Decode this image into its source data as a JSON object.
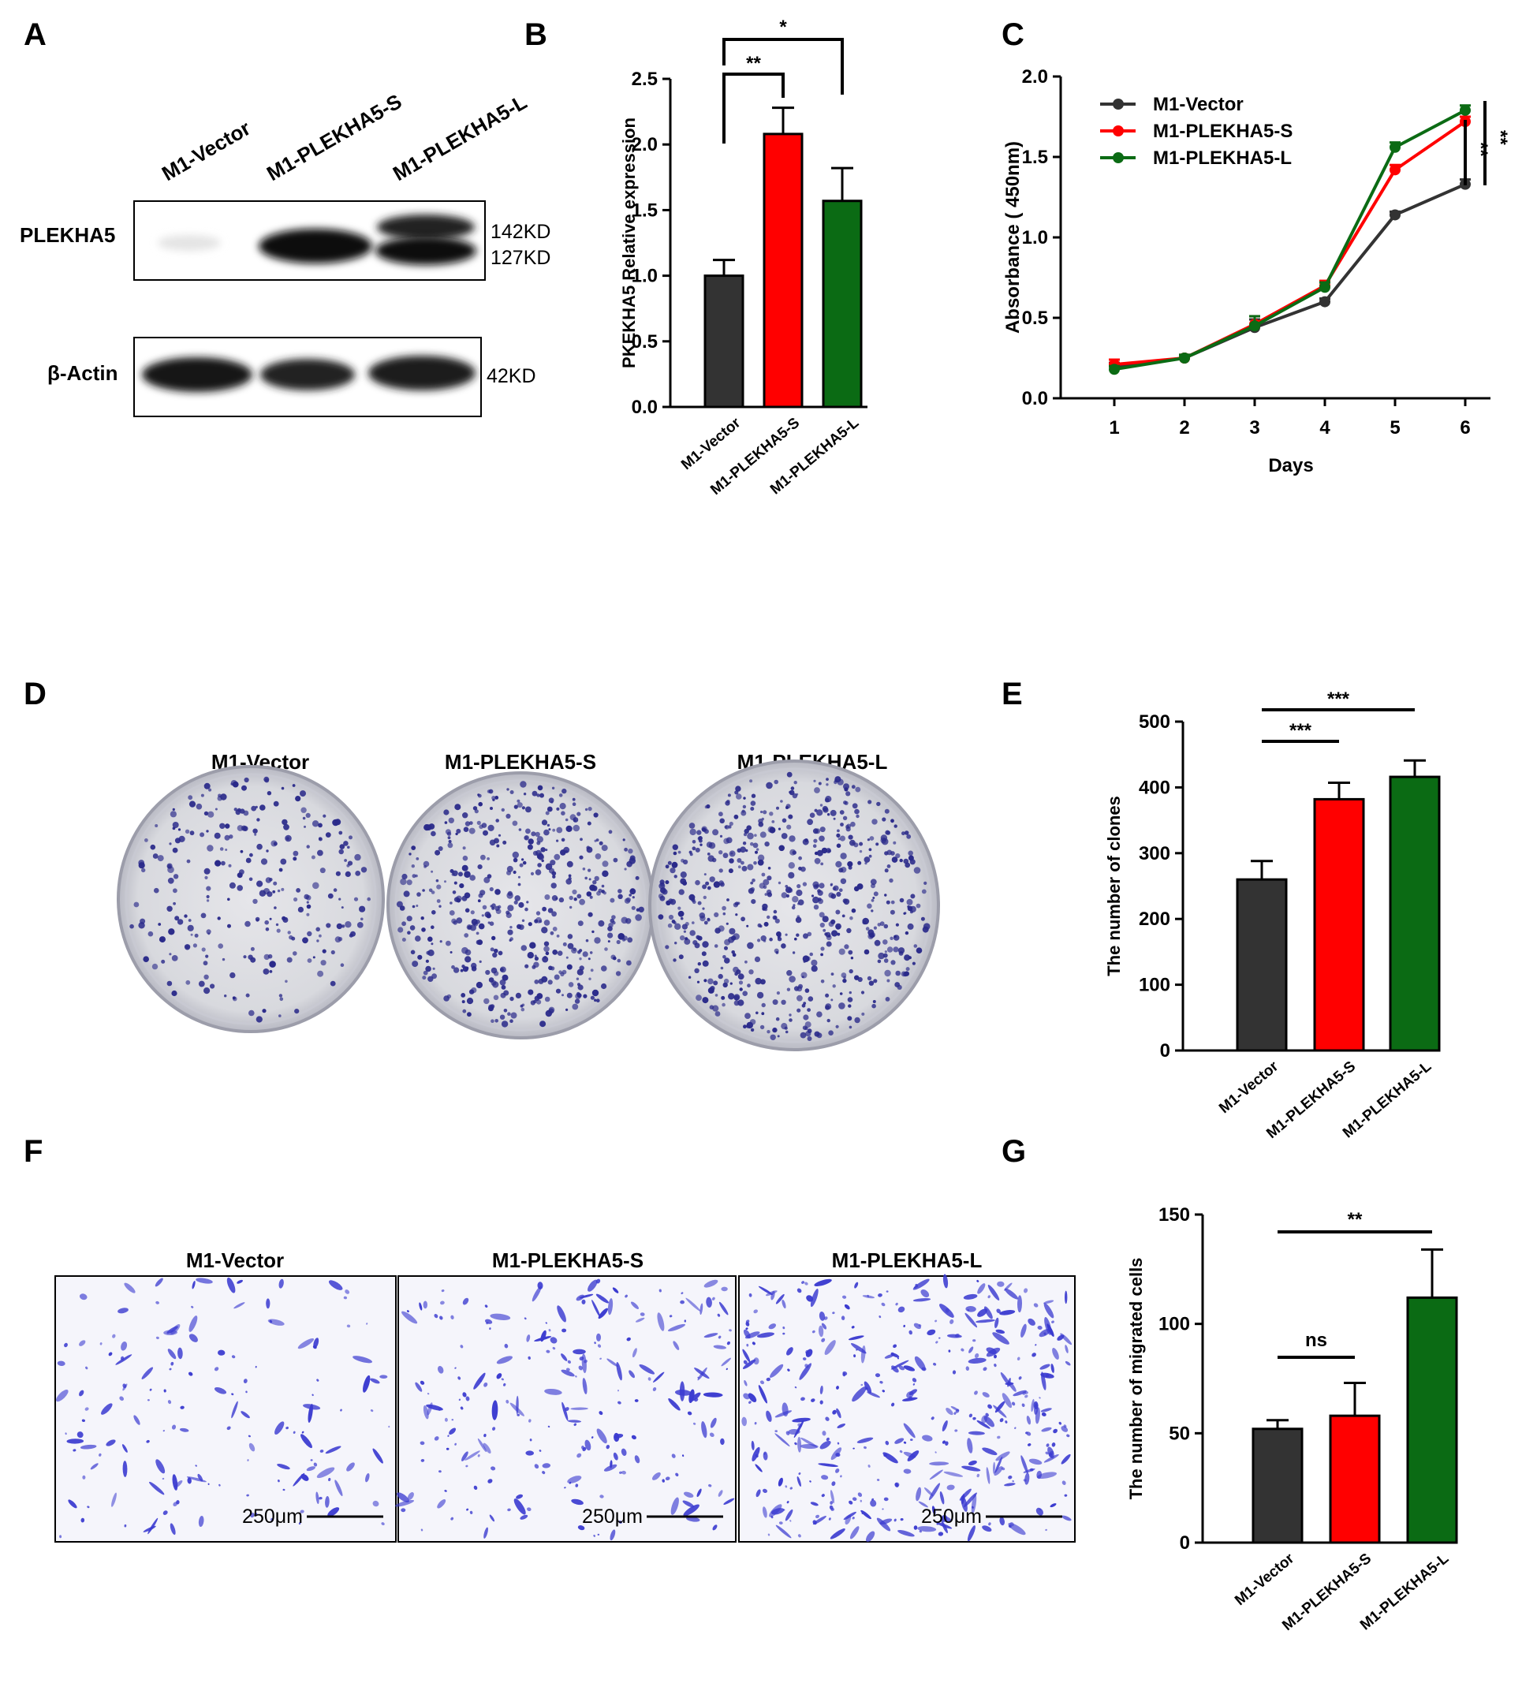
{
  "colors": {
    "vector": "#333333",
    "s": "#ff0000",
    "l": "#0b6b14"
  },
  "panels": {
    "A": "A",
    "B": "B",
    "C": "C",
    "D": "D",
    "E": "E",
    "F": "F",
    "G": "G"
  },
  "western": {
    "lanes": [
      "M1-Vector",
      "M1-PLEKHA5-S",
      "M1-PLEKHA5-L"
    ],
    "rows": [
      {
        "label": "PLEKHA5",
        "bands": [
          "142KD",
          "127KD"
        ]
      },
      {
        "label": "β-Actin",
        "bands": [
          "42KD"
        ]
      }
    ]
  },
  "colony": {
    "labels": [
      "M1-Vector",
      "M1-PLEKHA5-S",
      "M1-PLEKHA5-L"
    ],
    "density": [
      0.3,
      0.55,
      0.7
    ]
  },
  "migration": {
    "labels": [
      "M1-Vector",
      "M1-PLEKHA5-S",
      "M1-PLEKHA5-L"
    ],
    "scale": "250μm",
    "density": [
      0.3,
      0.45,
      0.8
    ]
  },
  "chart_data": [
    {
      "id": "B",
      "type": "bar",
      "categories": [
        "M1-Vector",
        "M1-PLEKHA5-S",
        "M1-PLEKHA5-L"
      ],
      "values": [
        1.0,
        2.08,
        1.57
      ],
      "errors": [
        0.12,
        0.2,
        0.25
      ],
      "ylabel": "PKEKHA5 Relative expression",
      "ylim": [
        0,
        2.5
      ],
      "yticks": [
        0.0,
        0.5,
        1.0,
        1.5,
        2.0,
        2.5
      ],
      "tick_labels": [
        "0.0",
        "0.5",
        "1.0",
        "1.5",
        "2.0",
        "2.5"
      ],
      "significance": [
        {
          "from": 0,
          "to": 1,
          "label": "**"
        },
        {
          "from": 0,
          "to": 2,
          "label": "*"
        }
      ]
    },
    {
      "id": "C",
      "type": "line",
      "x": [
        1,
        2,
        3,
        4,
        5,
        6
      ],
      "xticks": [
        "1",
        "2",
        "3",
        "4",
        "5",
        "6"
      ],
      "xlabel": "Days",
      "ylabel": "Absorbance ( 450nm)",
      "ylim": [
        0,
        2.0
      ],
      "yticks": [
        0.0,
        0.5,
        1.0,
        1.5,
        2.0
      ],
      "tick_labels": [
        "0.0",
        "0.5",
        "1.0",
        "1.5",
        "2.0"
      ],
      "legend_position": "top-left",
      "series": [
        {
          "name": "M1-Vector",
          "values": [
            0.2,
            0.25,
            0.44,
            0.6,
            1.14,
            1.33
          ],
          "errors": [
            0.02,
            0.02,
            0.05,
            0.02,
            0.02,
            0.03
          ]
        },
        {
          "name": "M1-PLEKHA5-S",
          "values": [
            0.21,
            0.25,
            0.46,
            0.7,
            1.42,
            1.72
          ],
          "errors": [
            0.03,
            0.02,
            0.05,
            0.03,
            0.03,
            0.03
          ]
        },
        {
          "name": "M1-PLEKHA5-L",
          "values": [
            0.18,
            0.25,
            0.45,
            0.69,
            1.56,
            1.79
          ],
          "errors": [
            0.02,
            0.02,
            0.06,
            0.03,
            0.03,
            0.03
          ]
        }
      ],
      "significance": [
        "**",
        "**"
      ]
    },
    {
      "id": "E",
      "type": "bar",
      "categories": [
        "M1-Vector",
        "M1-PLEKHA5-S",
        "M1-PLEKHA5-L"
      ],
      "values": [
        260,
        382,
        416
      ],
      "errors": [
        28,
        25,
        25
      ],
      "ylabel": "The number of clones",
      "ylim": [
        0,
        500
      ],
      "yticks": [
        0,
        100,
        200,
        300,
        400,
        500
      ],
      "tick_labels": [
        "0",
        "100",
        "200",
        "300",
        "400",
        "500"
      ],
      "significance": [
        {
          "from": 0,
          "to": 1,
          "label": "***"
        },
        {
          "from": 0,
          "to": 2,
          "label": "***"
        }
      ]
    },
    {
      "id": "G",
      "type": "bar",
      "categories": [
        "M1-Vector",
        "M1-PLEKHA5-S",
        "M1-PLEKHA5-L"
      ],
      "values": [
        52,
        58,
        112
      ],
      "errors": [
        4,
        15,
        22
      ],
      "ylabel": "The number of migrated cells",
      "ylim": [
        0,
        150
      ],
      "yticks": [
        0,
        50,
        100,
        150
      ],
      "tick_labels": [
        "0",
        "50",
        "100",
        "150"
      ],
      "significance": [
        {
          "from": 0,
          "to": 1,
          "label": "ns"
        },
        {
          "from": 0,
          "to": 2,
          "label": "**"
        }
      ]
    }
  ]
}
